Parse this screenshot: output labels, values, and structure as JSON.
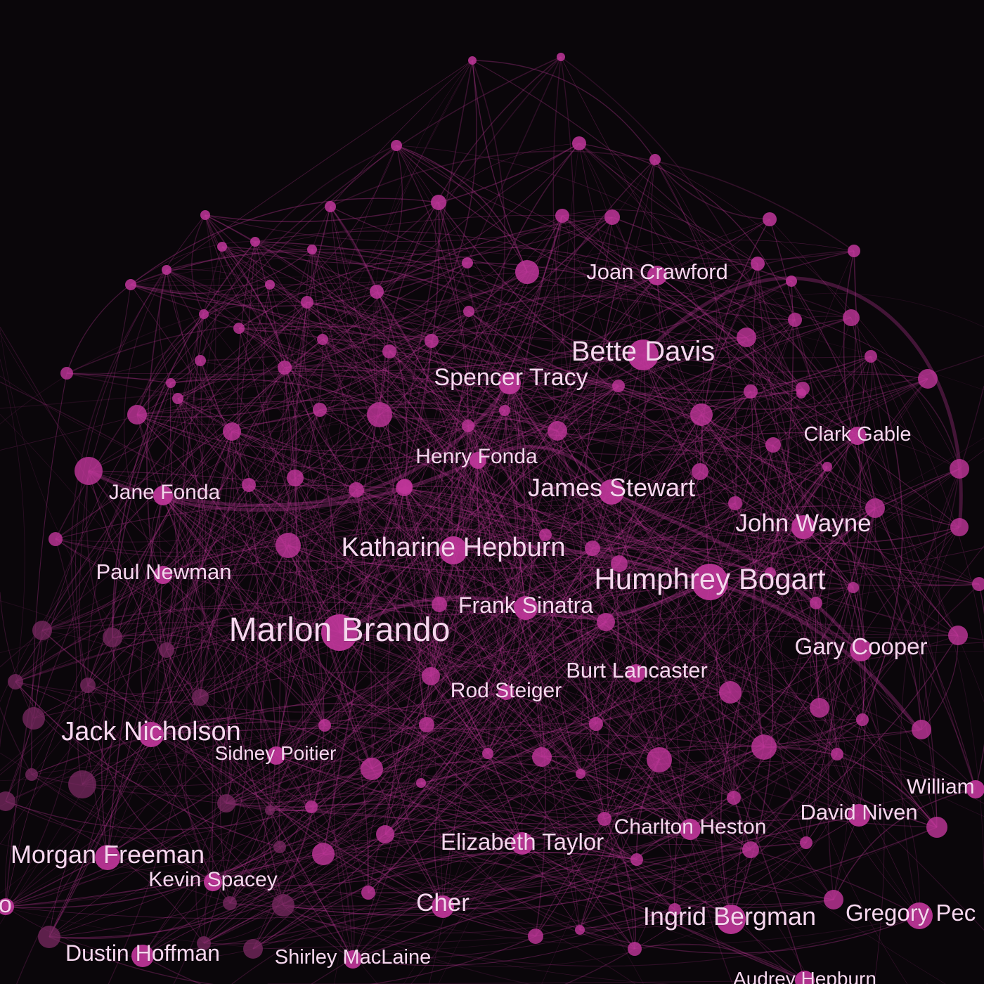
{
  "colors": {
    "background": "#0a060a",
    "node_primary": "#c0369a",
    "node_dim": "#7a2a62",
    "edge": "#b0348c",
    "label": "#f6d7ee"
  },
  "nodes": [
    {
      "id": "joan-crawford",
      "label": "Joan Crawford"
    },
    {
      "id": "bette-davis",
      "label": "Bette Davis"
    },
    {
      "id": "spencer-tracy",
      "label": "Spencer Tracy"
    },
    {
      "id": "clark-gable",
      "label": "Clark Gable"
    },
    {
      "id": "henry-fonda",
      "label": "Henry Fonda"
    },
    {
      "id": "jane-fonda",
      "label": "Jane Fonda"
    },
    {
      "id": "james-stewart",
      "label": "James Stewart"
    },
    {
      "id": "john-wayne",
      "label": "John Wayne"
    },
    {
      "id": "katharine-hepburn",
      "label": "Katharine Hepburn"
    },
    {
      "id": "paul-newman",
      "label": "Paul Newman"
    },
    {
      "id": "humphrey-bogart",
      "label": "Humphrey Bogart"
    },
    {
      "id": "frank-sinatra",
      "label": "Frank Sinatra"
    },
    {
      "id": "marlon-brando",
      "label": "Marlon Brando"
    },
    {
      "id": "gary-cooper",
      "label": "Gary Cooper"
    },
    {
      "id": "burt-lancaster",
      "label": "Burt Lancaster"
    },
    {
      "id": "rod-steiger",
      "label": "Rod Steiger"
    },
    {
      "id": "jack-nicholson",
      "label": "Jack Nicholson"
    },
    {
      "id": "sidney-poitier",
      "label": "Sidney Poitier"
    },
    {
      "id": "william",
      "label": "William"
    },
    {
      "id": "david-niven",
      "label": "David Niven"
    },
    {
      "id": "charlton-heston",
      "label": "Charlton Heston"
    },
    {
      "id": "elizabeth-taylor",
      "label": "Elizabeth Taylor"
    },
    {
      "id": "morgan-freeman",
      "label": "Morgan Freeman"
    },
    {
      "id": "kevin-spacey",
      "label": "Kevin Spacey"
    },
    {
      "id": "o-partial",
      "label": "o"
    },
    {
      "id": "cher",
      "label": "Cher"
    },
    {
      "id": "ingrid-bergman",
      "label": "Ingrid Bergman"
    },
    {
      "id": "gregory-peck",
      "label": "Gregory Pec"
    },
    {
      "id": "dustin-hoffman",
      "label": "Dustin Hoffman"
    },
    {
      "id": "shirley-maclaine",
      "label": "Shirley MacLaine"
    },
    {
      "id": "audrey-hepburn",
      "label": "Audrey Hepburn"
    }
  ]
}
